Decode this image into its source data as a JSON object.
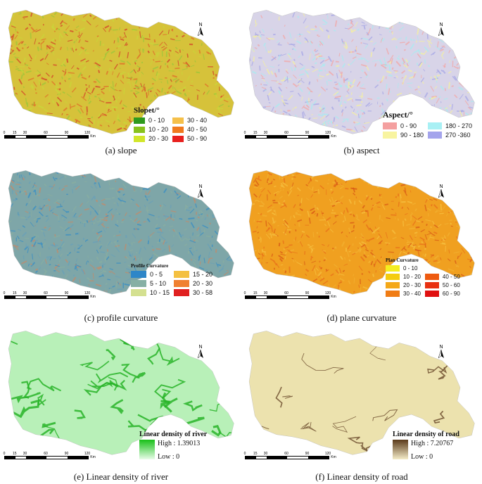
{
  "panels": [
    {
      "id": "a",
      "caption": "(a) slope",
      "base_color": "#d6c23a",
      "pattern_colors": [
        "#e0702a",
        "#9cc63a",
        "#c8d83a",
        "#d4432a"
      ],
      "legend": {
        "title": "Slopet/°",
        "items": [
          {
            "label": "0 - 10",
            "color": "#2e9a1e"
          },
          {
            "label": "30 - 40",
            "color": "#f5c04a"
          },
          {
            "label": "10 - 20",
            "color": "#88c21c"
          },
          {
            "label": "40 - 50",
            "color": "#f07a1e"
          },
          {
            "label": "20 - 30",
            "color": "#d2e62a"
          },
          {
            "label": "50 - 90",
            "color": "#e8201e"
          }
        ]
      }
    },
    {
      "id": "b",
      "caption": "(b) aspect",
      "base_color": "#d8d4e8",
      "pattern_colors": [
        "#f2a8a8",
        "#f5f0a0",
        "#a8ecf0",
        "#a8a8e6"
      ],
      "legend": {
        "title": "Aspect/°",
        "items": [
          {
            "label": "0 - 90",
            "color": "#f4a0a0"
          },
          {
            "label": "180 - 270",
            "color": "#a8f0f4"
          },
          {
            "label": "90 - 180",
            "color": "#f8f4a0"
          },
          {
            "label": "270 -360",
            "color": "#a4a4ec"
          }
        ]
      }
    },
    {
      "id": "c",
      "caption": "(c) profile curvature",
      "base_color": "#7ea6a8",
      "pattern_colors": [
        "#3a8ec4",
        "#8aaea0",
        "#c48a6a",
        "#6aa0b8"
      ],
      "legend": {
        "title": "Profile Curvature",
        "items": [
          {
            "label": "0 - 5",
            "color": "#2e86c8"
          },
          {
            "label": "15 - 20",
            "color": "#f4c040"
          },
          {
            "label": "5 - 10",
            "color": "#86b0a4"
          },
          {
            "label": "20 - 30",
            "color": "#f08030"
          },
          {
            "label": "10 - 15",
            "color": "#d4e090"
          },
          {
            "label": "30 - 58",
            "color": "#e02020"
          }
        ]
      }
    },
    {
      "id": "d",
      "caption": "(d) plane curvature",
      "base_color": "#f0a020",
      "pattern_colors": [
        "#e8701a",
        "#f6c040",
        "#d85a16",
        "#f2b030"
      ],
      "legend": {
        "title": "Plan Curvature",
        "items": [
          {
            "label": "0 - 10",
            "color": "#f4ee20"
          },
          {
            "label": "10 - 20",
            "color": "#f4cc10"
          },
          {
            "label": "40 - 50",
            "color": "#ee5a10"
          },
          {
            "label": "20 - 30",
            "color": "#f4a818"
          },
          {
            "label": "50 - 60",
            "color": "#e83010"
          },
          {
            "label": "30 - 40",
            "color": "#f07c14"
          },
          {
            "label": "60 - 90",
            "color": "#e01010"
          }
        ]
      }
    },
    {
      "id": "e",
      "caption": "(e) Linear density of river",
      "base_color": "#b8f0b8",
      "line_color": "#28b428",
      "legend": {
        "title": "Linear density of river",
        "high": "High : 1.39013",
        "low": "Low : 0",
        "grad_top": "#18c018",
        "grad_bottom": "#e8fce8"
      }
    },
    {
      "id": "f",
      "caption": "(f) Linear density of road",
      "base_color": "#ece2ae",
      "line_color": "#6a4a2a",
      "legend": {
        "title": "Linear density of road",
        "high": "High : 7.20767",
        "low": "Low : 0",
        "grad_top": "#5a3a1a",
        "grad_bottom": "#f4ecc8"
      }
    }
  ],
  "north_label": "N",
  "scale": {
    "ticks": [
      "0",
      "15",
      "30",
      "60",
      "90",
      "120"
    ],
    "unit": "Km"
  }
}
